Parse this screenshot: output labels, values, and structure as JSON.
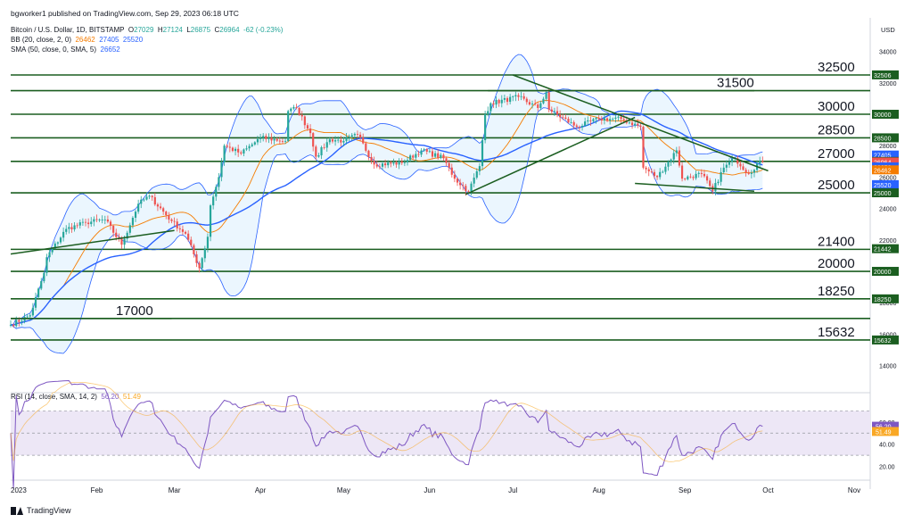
{
  "publisher_line": "bgworker1 published on TradingView.com, Sep 29, 2023 06:18 UTC",
  "logo_text": "TradingView",
  "legend": {
    "symbol": "Bitcoin / U.S. Dollar, 1D, BITSTAMP",
    "ohlc": {
      "o_label": "O",
      "o": "27029",
      "h_label": "H",
      "h": "27124",
      "l_label": "L",
      "l": "26875",
      "c_label": "C",
      "c": "26964",
      "chg": "-62 (-0.23%)"
    },
    "bb_label": "BB (20, close, 2, 0)",
    "bb_values": [
      "26462",
      "27405",
      "25520"
    ],
    "sma_label": "SMA (50, close, 0, SMA, 5)",
    "sma_value": "26652",
    "rsi_label": "RSI (14, close, SMA, 14, 2)",
    "rsi_values": [
      "56.20",
      "51.49"
    ]
  },
  "colors": {
    "up": "#26a69a",
    "down": "#ef5350",
    "bb_line": "#2962ff",
    "bb_fill": "#e3f2fd",
    "sma": "#2962ff",
    "basis": "#f57c00",
    "level": "#1b5e20",
    "rsi": "#7e57c2",
    "rsi_fill": "#ede7f6",
    "trend": "#1b5e20"
  },
  "chart_data": [
    {
      "type": "candlestick",
      "title": "Bitcoin / U.S. Dollar, 1D, BITSTAMP",
      "y_axis_unit": "USD",
      "y_ticks": [
        14000,
        16000,
        18000,
        20000,
        22000,
        24000,
        26000,
        28000,
        30000,
        32000,
        34000
      ],
      "x_ticks": [
        "2023",
        "Feb",
        "Mar",
        "Apr",
        "May",
        "Jun",
        "Jul",
        "Aug",
        "Sep",
        "Oct",
        "Nov"
      ],
      "ylim": [
        12900,
        35000
      ],
      "last_price": 26964,
      "annotated_levels": [
        32500,
        31500,
        30000,
        28500,
        27000,
        25000,
        21400,
        20000,
        18250,
        17000,
        15632
      ],
      "axis_price_tags": [
        32506,
        30000,
        28500,
        27405,
        27000,
        26964,
        26652,
        26462,
        25520,
        25000,
        21442,
        20000,
        18250,
        15632
      ],
      "close_anchors": [
        {
          "date": "2023-01-01",
          "close": 16600
        },
        {
          "date": "2023-01-08",
          "close": 17200
        },
        {
          "date": "2023-01-13",
          "close": 19900
        },
        {
          "date": "2023-01-14",
          "close": 20900
        },
        {
          "date": "2023-01-21",
          "close": 22700
        },
        {
          "date": "2023-01-28",
          "close": 23100
        },
        {
          "date": "2023-02-04",
          "close": 23300
        },
        {
          "date": "2023-02-10",
          "close": 21700
        },
        {
          "date": "2023-02-16",
          "close": 24300
        },
        {
          "date": "2023-02-20",
          "close": 24800
        },
        {
          "date": "2023-02-28",
          "close": 23200
        },
        {
          "date": "2023-03-05",
          "close": 22400
        },
        {
          "date": "2023-03-10",
          "close": 20200
        },
        {
          "date": "2023-03-13",
          "close": 22200
        },
        {
          "date": "2023-03-14",
          "close": 24200
        },
        {
          "date": "2023-03-17",
          "close": 26000
        },
        {
          "date": "2023-03-19",
          "close": 28000
        },
        {
          "date": "2023-03-25",
          "close": 27500
        },
        {
          "date": "2023-04-01",
          "close": 28500
        },
        {
          "date": "2023-04-10",
          "close": 28300
        },
        {
          "date": "2023-04-11",
          "close": 30200
        },
        {
          "date": "2023-04-14",
          "close": 30400
        },
        {
          "date": "2023-04-19",
          "close": 28800
        },
        {
          "date": "2023-04-21",
          "close": 27300
        },
        {
          "date": "2023-04-26",
          "close": 28400
        },
        {
          "date": "2023-05-01",
          "close": 28300
        },
        {
          "date": "2023-05-06",
          "close": 28700
        },
        {
          "date": "2023-05-12",
          "close": 26800
        },
        {
          "date": "2023-05-22",
          "close": 26900
        },
        {
          "date": "2023-05-29",
          "close": 27700
        },
        {
          "date": "2023-06-06",
          "close": 27200
        },
        {
          "date": "2023-06-10",
          "close": 25900
        },
        {
          "date": "2023-06-15",
          "close": 25100
        },
        {
          "date": "2023-06-19",
          "close": 26700
        },
        {
          "date": "2023-06-21",
          "close": 30000
        },
        {
          "date": "2023-06-23",
          "close": 30700
        },
        {
          "date": "2023-07-03",
          "close": 31100
        },
        {
          "date": "2023-07-10",
          "close": 30400
        },
        {
          "date": "2023-07-13",
          "close": 31400
        },
        {
          "date": "2023-07-14",
          "close": 30300
        },
        {
          "date": "2023-07-24",
          "close": 29200
        },
        {
          "date": "2023-08-01",
          "close": 29700
        },
        {
          "date": "2023-08-09",
          "close": 29700
        },
        {
          "date": "2023-08-16",
          "close": 29200
        },
        {
          "date": "2023-08-17",
          "close": 26600
        },
        {
          "date": "2023-08-22",
          "close": 26000
        },
        {
          "date": "2023-08-29",
          "close": 27700
        },
        {
          "date": "2023-08-31",
          "close": 25900
        },
        {
          "date": "2023-09-07",
          "close": 26200
        },
        {
          "date": "2023-09-11",
          "close": 25100
        },
        {
          "date": "2023-09-15",
          "close": 26600
        },
        {
          "date": "2023-09-19",
          "close": 27200
        },
        {
          "date": "2023-09-24",
          "close": 26200
        },
        {
          "date": "2023-09-28",
          "close": 27029
        },
        {
          "date": "2023-09-29",
          "close": 26964
        }
      ]
    },
    {
      "type": "line",
      "title": "RSI (14, close, SMA, 14, 2)",
      "y_ticks": [
        20,
        40,
        60
      ],
      "bands": [
        70,
        30
      ],
      "ylim": [
        10,
        80
      ],
      "last_value": 56.2,
      "last_sma": 51.49
    }
  ]
}
